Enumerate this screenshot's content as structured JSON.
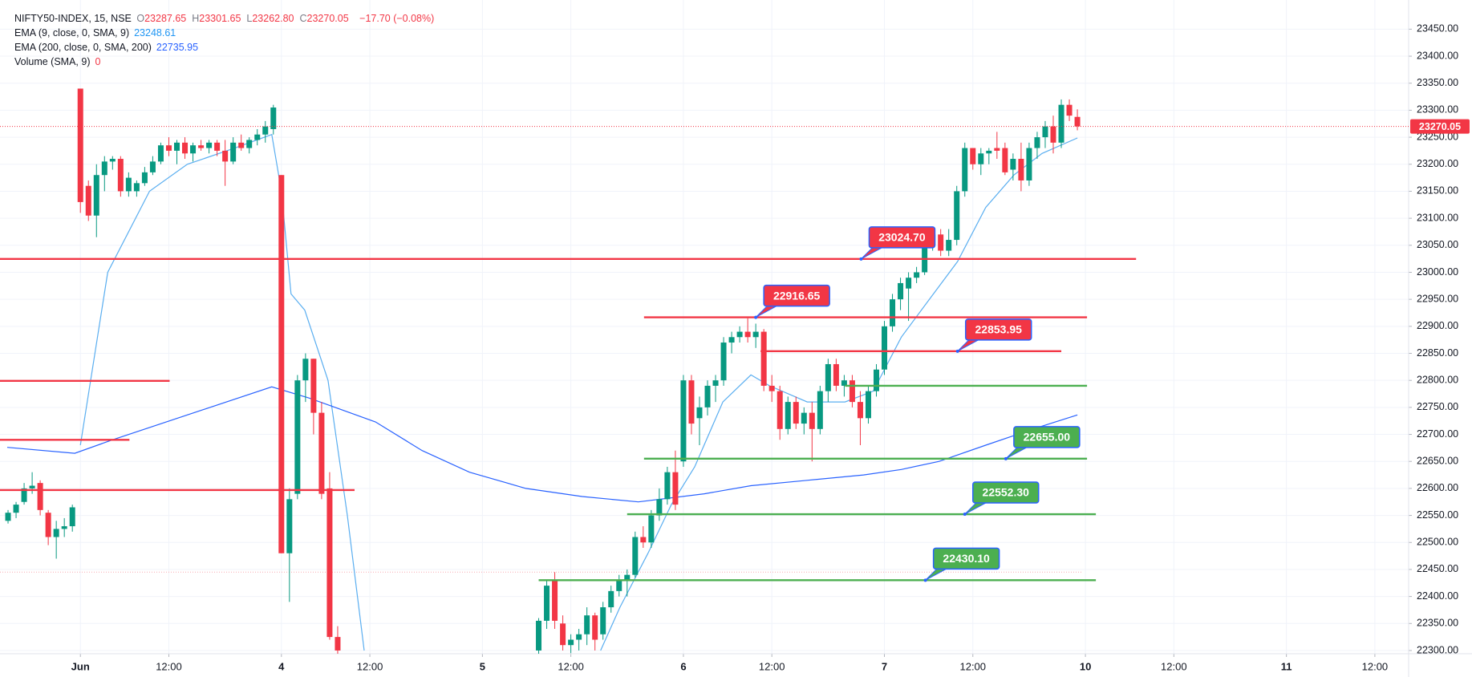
{
  "header": {
    "symbol": "NIFTY50-INDEX, 15, NSE",
    "ohlc": [
      {
        "key": "O",
        "value": "23287.65"
      },
      {
        "key": "H",
        "value": "23301.65"
      },
      {
        "key": "L",
        "value": "23262.80"
      },
      {
        "key": "C",
        "value": "23270.05"
      }
    ],
    "change": "−17.70 (−0.08%)",
    "indicators": [
      {
        "name": "EMA (9, close, 0, SMA, 9)",
        "value": "23248.61",
        "color": "#2196f3"
      },
      {
        "name": "EMA (200, close, 0, SMA, 200)",
        "value": "22735.95",
        "color": "#2962ff"
      },
      {
        "name": "Volume (SMA, 9)",
        "value": "0",
        "color": "#f23645"
      }
    ]
  },
  "chart_data": {
    "type": "candlestick",
    "up_color": "#089981",
    "down_color": "#f23645",
    "grid": true,
    "xlim": [
      -10,
      165.2
    ],
    "ylim": [
      22294,
      23504
    ],
    "xticks": [
      {
        "value": 0,
        "label": "Jun"
      },
      {
        "value": 11,
        "label": "12:00"
      },
      {
        "value": 25,
        "label": "4"
      },
      {
        "value": 36,
        "label": "12:00"
      },
      {
        "value": 50,
        "label": "5"
      },
      {
        "value": 61,
        "label": "12:00"
      },
      {
        "value": 75,
        "label": "6"
      },
      {
        "value": 86,
        "label": "12:00"
      },
      {
        "value": 100,
        "label": "7"
      },
      {
        "value": 111,
        "label": "12:00"
      },
      {
        "value": 125,
        "label": "10"
      },
      {
        "value": 136,
        "label": "12:00"
      },
      {
        "value": 150,
        "label": "11"
      },
      {
        "value": 161,
        "label": "12:00"
      }
    ],
    "yticks": [
      {
        "value": 22300,
        "label": "22300.00"
      },
      {
        "value": 22350,
        "label": "22350.00"
      },
      {
        "value": 22400,
        "label": "22400.00"
      },
      {
        "value": 22450,
        "label": "22450.00"
      },
      {
        "value": 22500,
        "label": "22500.00"
      },
      {
        "value": 22550,
        "label": "22550.00"
      },
      {
        "value": 22600,
        "label": "22600.00"
      },
      {
        "value": 22650,
        "label": "22650.00"
      },
      {
        "value": 22700,
        "label": "22700.00"
      },
      {
        "value": 22750,
        "label": "22750.00"
      },
      {
        "value": 22800,
        "label": "22800.00"
      },
      {
        "value": 22850,
        "label": "22850.00"
      },
      {
        "value": 22900,
        "label": "22900.00"
      },
      {
        "value": 22950,
        "label": "22950.00"
      },
      {
        "value": 23000,
        "label": "23000.00"
      },
      {
        "value": 23050,
        "label": "23050.00"
      },
      {
        "value": 23100,
        "label": "23100.00"
      },
      {
        "value": 23150,
        "label": "23150.00"
      },
      {
        "value": 23200,
        "label": "23200.00"
      },
      {
        "value": 23250,
        "label": "23250.00"
      },
      {
        "value": 23300,
        "label": "23300.00"
      },
      {
        "value": 23350,
        "label": "23350.00"
      },
      {
        "value": 23400,
        "label": "23400.00"
      },
      {
        "value": 23450,
        "label": "23450.00"
      }
    ],
    "x": [
      -9,
      -8,
      -7,
      -6,
      -5,
      -4,
      -3,
      -2,
      -1,
      0,
      1,
      2,
      3,
      4,
      5,
      6,
      7,
      8,
      9,
      10,
      11,
      12,
      13,
      14,
      15,
      16,
      17,
      18,
      19,
      20,
      21,
      22,
      23,
      24,
      25,
      26,
      27,
      28,
      29,
      30,
      31,
      32,
      57,
      58,
      59,
      60,
      61,
      62,
      63,
      64,
      65,
      66,
      67,
      68,
      69,
      70,
      71,
      72,
      73,
      74,
      75,
      76,
      77,
      78,
      79,
      80,
      81,
      82,
      83,
      84,
      85,
      86,
      87,
      88,
      89,
      90,
      91,
      92,
      93,
      94,
      95,
      96,
      97,
      98,
      99,
      100,
      101,
      102,
      103,
      104,
      105,
      106,
      107,
      108,
      109,
      110,
      111,
      112,
      113,
      114,
      115,
      116,
      117,
      118,
      119,
      120,
      121,
      122,
      123,
      124
    ],
    "ohlc": [
      [
        22540,
        22560,
        22535,
        22555
      ],
      [
        22555,
        22575,
        22545,
        22570
      ],
      [
        22575,
        22610,
        22570,
        22600
      ],
      [
        22600,
        22630,
        22590,
        22605
      ],
      [
        22610,
        22615,
        22550,
        22560
      ],
      [
        22555,
        22560,
        22495,
        22510
      ],
      [
        22510,
        22540,
        22470,
        22525
      ],
      [
        22525,
        22545,
        22510,
        22530
      ],
      [
        22530,
        22570,
        22520,
        22565
      ],
      [
        23340,
        23340,
        23110,
        23130
      ],
      [
        23160,
        23170,
        23095,
        23105
      ],
      [
        23105,
        23200,
        23065,
        23180
      ],
      [
        23180,
        23215,
        23150,
        23205
      ],
      [
        23205,
        23215,
        23190,
        23210
      ],
      [
        23210,
        23215,
        23140,
        23150
      ],
      [
        23150,
        23185,
        23140,
        23175
      ],
      [
        23150,
        23170,
        23140,
        23165
      ],
      [
        23165,
        23195,
        23160,
        23185
      ],
      [
        23185,
        23215,
        23180,
        23205
      ],
      [
        23205,
        23240,
        23200,
        23235
      ],
      [
        23235,
        23250,
        23215,
        23225
      ],
      [
        23225,
        23245,
        23200,
        23240
      ],
      [
        23240,
        23250,
        23210,
        23220
      ],
      [
        23220,
        23240,
        23205,
        23235
      ],
      [
        23235,
        23245,
        23225,
        23230
      ],
      [
        23230,
        23245,
        23220,
        23240
      ],
      [
        23240,
        23245,
        23215,
        23225
      ],
      [
        23225,
        23245,
        23160,
        23205
      ],
      [
        23205,
        23250,
        23200,
        23240
      ],
      [
        23240,
        23255,
        23225,
        23230
      ],
      [
        23230,
        23250,
        23220,
        23245
      ],
      [
        23245,
        23265,
        23235,
        23255
      ],
      [
        23255,
        23280,
        23240,
        23270
      ],
      [
        23265,
        23310,
        23255,
        23305
      ],
      [
        23180,
        23180,
        22480,
        22480
      ],
      [
        22480,
        22600,
        22390,
        22580
      ],
      [
        22590,
        22810,
        22580,
        22800
      ],
      [
        22800,
        22850,
        22760,
        22840
      ],
      [
        22840,
        22840,
        22700,
        22740
      ],
      [
        22740,
        22760,
        22580,
        22590
      ],
      [
        22600,
        22630,
        22320,
        22325
      ],
      [
        22325,
        22345,
        22290,
        22300
      ],
      [
        22300,
        22360,
        22290,
        22355
      ],
      [
        22355,
        22430,
        22340,
        22420
      ],
      [
        22430,
        22445,
        22340,
        22355
      ],
      [
        22350,
        22365,
        22300,
        22310
      ],
      [
        22310,
        22330,
        22295,
        22320
      ],
      [
        22320,
        22340,
        22300,
        22330
      ],
      [
        22330,
        22380,
        22310,
        22365
      ],
      [
        22365,
        22370,
        22300,
        22320
      ],
      [
        22330,
        22390,
        22320,
        22380
      ],
      [
        22380,
        22420,
        22370,
        22410
      ],
      [
        22410,
        22440,
        22400,
        22430
      ],
      [
        22430,
        22450,
        22400,
        22440
      ],
      [
        22440,
        22520,
        22435,
        22510
      ],
      [
        22510,
        22530,
        22490,
        22500
      ],
      [
        22500,
        22560,
        22490,
        22550
      ],
      [
        22550,
        22600,
        22540,
        22580
      ],
      [
        22580,
        22640,
        22570,
        22630
      ],
      [
        22630,
        22670,
        22560,
        22570
      ],
      [
        22650,
        22810,
        22640,
        22800
      ],
      [
        22800,
        22810,
        22700,
        22720
      ],
      [
        22730,
        22770,
        22680,
        22750
      ],
      [
        22750,
        22800,
        22735,
        22790
      ],
      [
        22790,
        22810,
        22760,
        22800
      ],
      [
        22800,
        22880,
        22790,
        22870
      ],
      [
        22870,
        22890,
        22850,
        22880
      ],
      [
        22880,
        22900,
        22870,
        22890
      ],
      [
        22890,
        22915,
        22870,
        22880
      ],
      [
        22880,
        22905,
        22860,
        22890
      ],
      [
        22890,
        22895,
        22780,
        22790
      ],
      [
        22790,
        22810,
        22760,
        22780
      ],
      [
        22780,
        22790,
        22690,
        22710
      ],
      [
        22710,
        22770,
        22700,
        22760
      ],
      [
        22760,
        22770,
        22710,
        22720
      ],
      [
        22720,
        22750,
        22700,
        22740
      ],
      [
        22740,
        22760,
        22650,
        22710
      ],
      [
        22710,
        22790,
        22700,
        22780
      ],
      [
        22780,
        22840,
        22760,
        22830
      ],
      [
        22830,
        22840,
        22780,
        22790
      ],
      [
        22790,
        22810,
        22770,
        22800
      ],
      [
        22800,
        22810,
        22750,
        22760
      ],
      [
        22760,
        22780,
        22680,
        22730
      ],
      [
        22730,
        22790,
        22720,
        22780
      ],
      [
        22780,
        22830,
        22770,
        22820
      ],
      [
        22820,
        22910,
        22810,
        22900
      ],
      [
        22900,
        22960,
        22890,
        22950
      ],
      [
        22950,
        22990,
        22930,
        22980
      ],
      [
        22970,
        23000,
        22910,
        22990
      ],
      [
        22990,
        23010,
        22980,
        23000
      ],
      [
        23000,
        23060,
        22995,
        23050
      ],
      [
        23050,
        23080,
        23040,
        23070
      ],
      [
        23070,
        23080,
        23030,
        23040
      ],
      [
        23040,
        23080,
        23030,
        23060
      ],
      [
        23060,
        23160,
        23050,
        23150
      ],
      [
        23150,
        23240,
        23140,
        23230
      ],
      [
        23230,
        23230,
        23190,
        23200
      ],
      [
        23200,
        23230,
        23180,
        23220
      ],
      [
        23220,
        23230,
        23200,
        23225
      ],
      [
        23230,
        23260,
        23210,
        23225
      ],
      [
        23230,
        23240,
        23180,
        23185
      ],
      [
        23190,
        23220,
        23170,
        23210
      ],
      [
        23210,
        23240,
        23150,
        23170
      ],
      [
        23170,
        23240,
        23160,
        23230
      ],
      [
        23230,
        23260,
        23210,
        23250
      ],
      [
        23250,
        23280,
        23230,
        23270
      ],
      [
        23270,
        23290,
        23220,
        23240
      ],
      [
        23240,
        23320,
        23230,
        23310
      ],
      [
        23310,
        23320,
        23280,
        23290
      ],
      [
        23287.65,
        23301.65,
        23262.8,
        23270.05
      ]
    ],
    "lines": [
      {
        "color": "#5aaef0",
        "x": [
          0,
          3.4,
          8.6,
          13.3,
          19.2,
          23.8,
          25,
          26.2,
          27.9,
          30.8,
          33.2,
          35.3,
          null,
          64.7,
          67.1,
          70.6,
          73.5,
          76.4,
          79.9,
          83.4,
          85.7,
          90.4,
          95.1,
          98.6,
          102.1,
          105.6,
          109.1,
          112.6,
          116.1,
          119.6,
          124
        ],
        "values": [
          22680,
          23000,
          23150,
          23200,
          23230,
          23255,
          23150,
          22960,
          22930,
          22800,
          22550,
          22300,
          null,
          22300,
          22380,
          22480,
          22570,
          22640,
          22760,
          22810,
          22790,
          22760,
          22760,
          22780,
          22880,
          22950,
          23020,
          23120,
          23180,
          23220,
          23248.61
        ]
      },
      {
        "color": "#2962ff",
        "x": [
          -9.1,
          -0.7,
          4,
          23.8,
          28.5,
          36.7,
          42.5,
          48.4,
          55.4,
          62.4,
          69.4,
          77.6,
          83.4,
          90.4,
          97.4,
          102.1,
          106.8,
          112.6,
          118.5,
          124
        ],
        "values": [
          22676,
          22665,
          22690,
          22788,
          22767,
          22723,
          22670,
          22630,
          22600,
          22585,
          22575,
          22590,
          22605,
          22615,
          22625,
          22635,
          22650,
          22680,
          22710,
          22736
        ]
      }
    ],
    "levels": [
      {
        "value": 23024.7,
        "label": "23024.70",
        "color": "#f23645",
        "x": [
          -10,
          131.3
        ],
        "anchor": 97.1
      },
      {
        "value": 22916.65,
        "label": "22916.65",
        "color": "#f23645",
        "x": [
          70.1,
          125.2
        ],
        "anchor": 84
      },
      {
        "value": 22853.95,
        "label": "22853.95",
        "color": "#f23645",
        "x": [
          84.6,
          122
        ],
        "anchor": 109.1
      },
      {
        "value": 22799,
        "color": "#f23645",
        "x": [
          -10,
          11.1
        ]
      },
      {
        "value": 22690,
        "color": "#f23645",
        "x": [
          -10,
          6.1
        ]
      },
      {
        "value": 22597,
        "color": "#f23645",
        "x": [
          -10,
          34.1
        ]
      },
      {
        "value": 22790,
        "color": "#4caf50",
        "x": [
          95.1,
          125.2
        ]
      },
      {
        "value": 22655,
        "label": "22655.00",
        "color": "#4caf50",
        "x": [
          70.1,
          125.2
        ],
        "anchor": 115.1
      },
      {
        "value": 22552.3,
        "label": "22552.30",
        "color": "#4caf50",
        "x": [
          68,
          126.3
        ],
        "anchor": 110
      },
      {
        "value": 22430.1,
        "label": "22430.10",
        "color": "#4caf50",
        "x": [
          57,
          126.3
        ],
        "anchor": 105.1
      }
    ],
    "ref_line": {
      "value": 22445,
      "color": "#f7a8b0",
      "x": [
        -10,
        124.5
      ]
    },
    "last": {
      "value": 23270.05,
      "color": "#f23645"
    }
  }
}
